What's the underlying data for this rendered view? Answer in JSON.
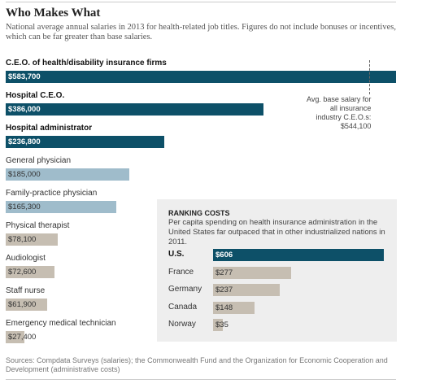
{
  "chart_data": [
    {
      "type": "bar",
      "orientation": "horizontal",
      "title": "Who Makes What",
      "subtitle": "National average annual salaries in 2013 for health-related job titles. Figures do not include bonuses or incentives, which can be far greater than base salaries.",
      "categories": [
        "C.E.O. of health/disability insurance firms",
        "Hospital C.E.O.",
        "Hospital administrator",
        "General physician",
        "Family-practice physician",
        "Physical therapist",
        "Audiologist",
        "Staff nurse",
        "Emergency medical technician"
      ],
      "values": [
        583700,
        386000,
        236800,
        185000,
        165300,
        78100,
        72600,
        61900,
        27400
      ],
      "value_labels": [
        "$583,700",
        "$386,000",
        "$236,800",
        "$185,000",
        "$165,300",
        "$78,100",
        "$72,600",
        "$61,900",
        "$27,400"
      ],
      "colors": [
        "#0d5068",
        "#0d5068",
        "#0d5068",
        "#9fbccb",
        "#9fbccb",
        "#c6beb2",
        "#c6beb2",
        "#c6beb2",
        "#c6beb2"
      ],
      "reference": {
        "value": 544100,
        "label": "Avg. base salary for all insurance industry C.E.O.s: $544,100"
      },
      "source": "Sources: Compdata Surveys (salaries); the Commonwealth Fund and the Organization for Economic Cooperation and Development (administrative costs)"
    },
    {
      "type": "bar",
      "orientation": "horizontal",
      "title": "RANKING COSTS",
      "subtitle": "Per capita spending on health insurance administration in the United States far outpaced that in other industrialized nations in 2011.",
      "categories": [
        "U.S.",
        "France",
        "Germany",
        "Canada",
        "Norway"
      ],
      "values": [
        606,
        277,
        237,
        148,
        35
      ],
      "value_labels": [
        "$606",
        "$277",
        "$237",
        "$148",
        "$35"
      ],
      "colors": [
        "#0d5068",
        "#c6beb2",
        "#c6beb2",
        "#c6beb2",
        "#c6beb2"
      ]
    }
  ]
}
